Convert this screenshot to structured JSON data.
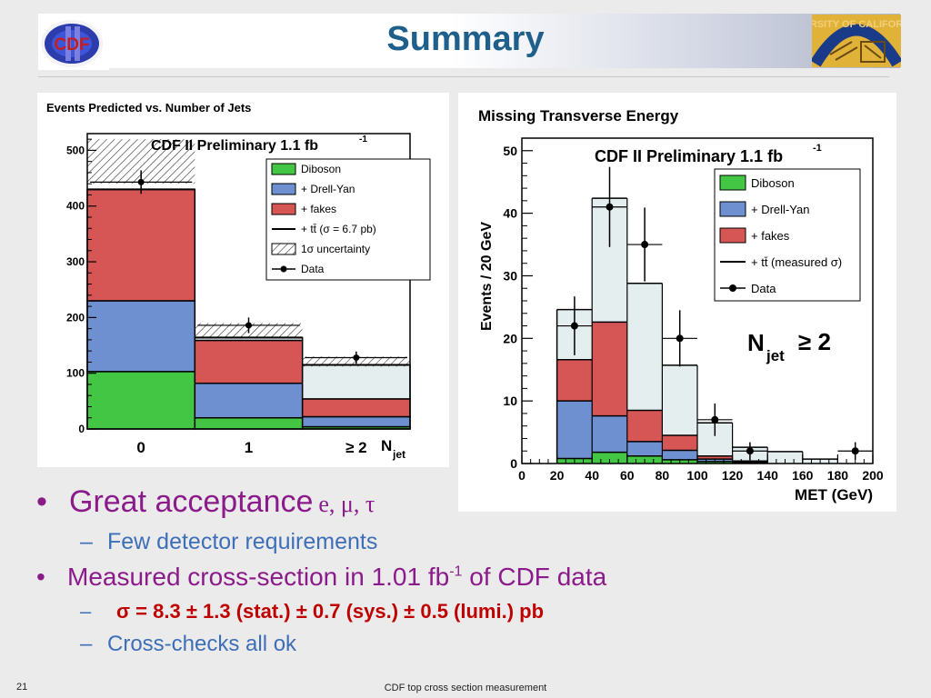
{
  "slide": {
    "title": "Summary",
    "page_number": "21",
    "footer": "CDF top cross section measurement"
  },
  "logos": {
    "left_text": "CDF",
    "right_text": "RSITY OF CALIFOR"
  },
  "bullets": {
    "b1_text": "Great acceptance",
    "b1_symbols": "e, μ, τ",
    "b1_dot": "•",
    "b2_text": "Few detector requirements",
    "b3_text": "Measured cross-section in 1.01 fb",
    "b3_sup": "-1",
    "b3_tail": " of CDF data",
    "b3_dot": "•",
    "b4_text": "σ = 8.3 ± 1.3 (stat.) ± 0.7 (sys.) ± 0.5 (lumi.) pb",
    "b5_text": "Cross-checks all ok",
    "dash": "–"
  },
  "colors": {
    "diboson": "#43c643",
    "drell_yan": "#6f90d0",
    "fakes": "#d65656",
    "ttbar": "#e4eeee",
    "title": "#1f5f8b",
    "bullet_purple": "#8b1b8b",
    "bullet_blue": "#3d6fb8",
    "result_red": "#c00000"
  },
  "chart_data": [
    {
      "type": "bar",
      "stacked": true,
      "title": "Events Predicted vs. Number of Jets",
      "subtitle": "CDF II Preliminary 1.1 fb",
      "subtitle_sup": "-1",
      "categories": [
        "0",
        "1",
        "≥ 2"
      ],
      "xlabel": "N",
      "xlabel_sub": "jet",
      "ylim": [
        0,
        530
      ],
      "yticks": [
        0,
        100,
        200,
        300,
        400,
        500
      ],
      "series": [
        {
          "name": "Diboson",
          "values": [
            103,
            20,
            4
          ]
        },
        {
          "name": "+ Drell-Yan",
          "values": [
            127,
            62,
            18
          ]
        },
        {
          "name": "+ fakes",
          "values": [
            200,
            77,
            32
          ]
        },
        {
          "name": "+ tt̄ (σ = 6.7 pb)",
          "values": [
            0,
            5,
            61
          ]
        }
      ],
      "uncertainty": [
        [
          440,
          520
        ],
        [
          165,
          190
        ],
        [
          112,
          130
        ]
      ],
      "data": {
        "name": "Data",
        "values": [
          443,
          186,
          128
        ],
        "errors": [
          21,
          14,
          11
        ]
      },
      "legend_uncertainty": "1σ uncertainty",
      "legend_placement": "top-right"
    },
    {
      "type": "bar",
      "stacked": true,
      "histogram": true,
      "title": "Missing Transverse Energy",
      "subtitle": "CDF II Preliminary 1.1 fb",
      "subtitle_sup": "-1",
      "annotation": "N",
      "annotation_sub": "jet",
      "annotation_tail": "≥ 2",
      "xlabel": "MET (GeV)",
      "ylabel": "Events / 20 GeV",
      "xlim": [
        0,
        200
      ],
      "ylim": [
        0,
        52
      ],
      "xticks": [
        0,
        20,
        40,
        60,
        80,
        100,
        120,
        140,
        160,
        180,
        200
      ],
      "yticks": [
        0,
        10,
        20,
        30,
        40,
        50
      ],
      "bin_edges": [
        20,
        40,
        60,
        80,
        100,
        120,
        140,
        160,
        180,
        200
      ],
      "series": [
        {
          "name": "Diboson",
          "values": [
            0.8,
            1.8,
            1.2,
            0.6,
            0.3,
            0.1,
            0,
            0,
            0
          ]
        },
        {
          "name": "+ Drell-Yan",
          "values": [
            9.2,
            5.8,
            2.3,
            1.5,
            0.4,
            0.1,
            0,
            0,
            0
          ]
        },
        {
          "name": "+ fakes",
          "values": [
            6.6,
            15.0,
            5.0,
            2.4,
            0.5,
            0.2,
            0,
            0,
            0
          ]
        },
        {
          "name": "+ tt̄ (measured σ)",
          "values": [
            8.0,
            19.8,
            20.3,
            11.2,
            5.3,
            2.2,
            1.9,
            0.7,
            0
          ]
        }
      ],
      "data": {
        "name": "Data",
        "x": [
          30,
          50,
          70,
          90,
          110,
          130,
          190
        ],
        "y": [
          22,
          41,
          35,
          20,
          7,
          2,
          2
        ],
        "errors": [
          4.7,
          6.4,
          5.9,
          4.5,
          2.6,
          1.4,
          1.4
        ]
      },
      "legend_placement": "top-right"
    }
  ]
}
